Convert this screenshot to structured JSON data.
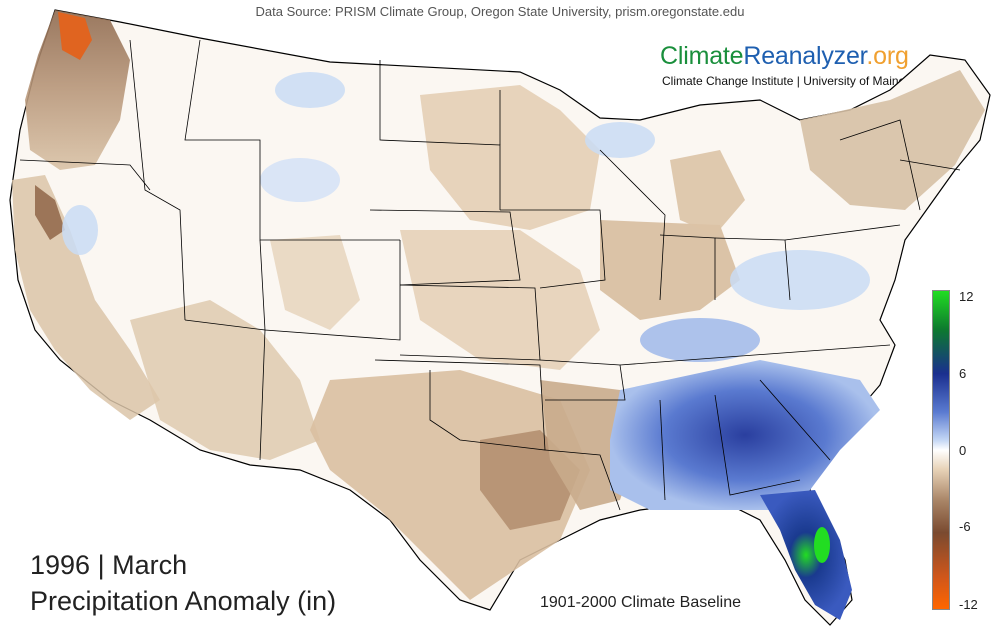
{
  "header": {
    "data_source": "Data Source: PRISM Climate Group, Oregon State University, prism.oregonstate.edu"
  },
  "brand": {
    "name_part1": "Climate",
    "name_part2": "Reanalyzer",
    "name_part3": ".org",
    "subtitle": "Climate Change Institute | University of Maine",
    "colors": {
      "part1": "#1a8f3c",
      "part2": "#1e5fb0",
      "part3": "#f0a030"
    }
  },
  "title": {
    "year_month": "1996 | March",
    "metric": "Precipitation Anomaly (in)"
  },
  "baseline": "1901-2000 Climate Baseline",
  "legend": {
    "ticks": [
      "12",
      "6",
      "0",
      "-6",
      "-12"
    ],
    "colors": {
      "wet_extreme": "#22dd22",
      "wet_strong": "#1a2f8f",
      "wet": "#5a7ad0",
      "wet_light": "#c5d8f5",
      "neutral": "#ffffff",
      "dry_light": "#e8d3b8",
      "dry": "#a88466",
      "dry_strong": "#7a4a30",
      "dry_extreme": "#ff6600"
    }
  }
}
